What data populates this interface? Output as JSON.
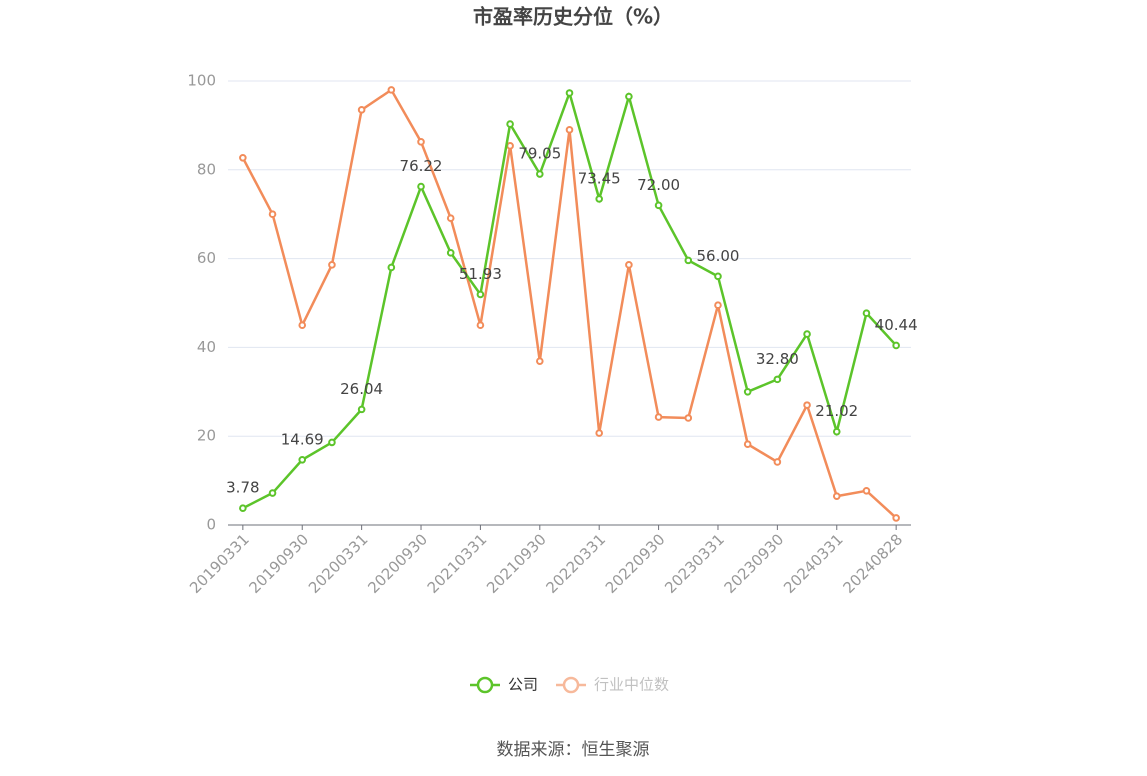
{
  "chart_data": {
    "type": "line",
    "title": "市盈率历史分位（%）",
    "source": "数据来源：恒生聚源",
    "categories": [
      "20190331",
      null,
      "20190930",
      null,
      "20200331",
      null,
      "20200930",
      null,
      "20210331",
      null,
      "20210930",
      null,
      "20220331",
      null,
      "20220930",
      null,
      "20230331",
      null,
      "20230930",
      null,
      "20240331",
      null,
      "20240828"
    ],
    "series": [
      {
        "name": "公司",
        "color": "#5cc42a",
        "values": [
          3.78,
          7.2,
          14.69,
          18.6,
          26.04,
          58.0,
          76.22,
          61.3,
          51.93,
          90.3,
          79.05,
          97.3,
          73.45,
          96.5,
          72.0,
          59.6,
          56.0,
          30.0,
          32.8,
          43.0,
          21.02,
          47.7,
          40.44
        ],
        "value_labels": [
          "3.78",
          null,
          "14.69",
          null,
          "26.04",
          null,
          "76.22",
          null,
          "51.93",
          null,
          "79.05",
          null,
          "73.45",
          null,
          "72.00",
          null,
          "56.00",
          null,
          "32.80",
          null,
          "21.02",
          null,
          "40.44"
        ]
      },
      {
        "name": "行业中位数",
        "color": "#f28c5a",
        "values": [
          82.7,
          70.0,
          45.0,
          58.6,
          93.5,
          98.0,
          86.3,
          69.1,
          45.0,
          85.4,
          36.9,
          89.0,
          20.7,
          58.6,
          24.3,
          24.1,
          49.5,
          18.2,
          14.2,
          27.0,
          6.5,
          7.7,
          1.6
        ]
      }
    ],
    "ylim": [
      0,
      100
    ],
    "yticks": [
      0,
      20,
      40,
      60,
      80,
      100
    ],
    "grid": true,
    "legend": "bottom"
  }
}
